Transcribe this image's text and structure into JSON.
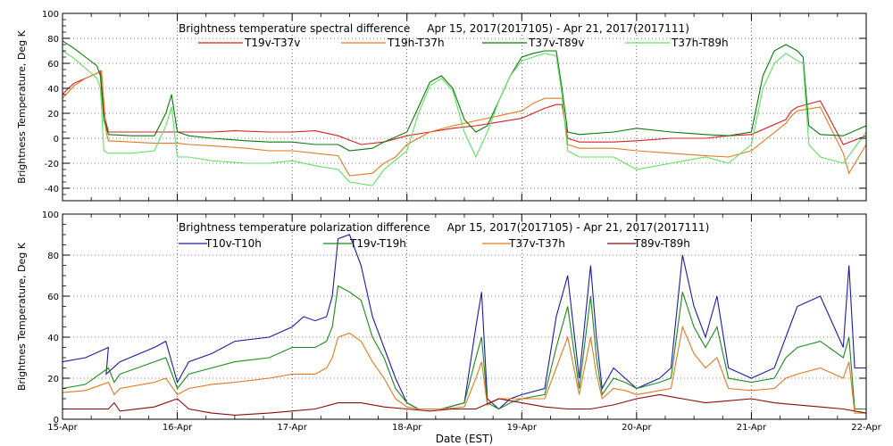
{
  "figure": {
    "xlabel": "Date (EST)",
    "x_ticks": [
      "15-Apr",
      "16-Apr",
      "17-Apr",
      "18-Apr",
      "19-Apr",
      "20-Apr",
      "21-Apr",
      "22-Apr"
    ]
  },
  "chart_data": [
    {
      "type": "line",
      "title": "Brightness temperature spectral difference     Apr 15, 2017(2017105) - Apr 21, 2017(2017111)",
      "ylabel": "Brightness Temperature, Deg K",
      "xlim": [
        0,
        7
      ],
      "ylim": [
        -50,
        100
      ],
      "y_ticks": [
        -40,
        -20,
        0,
        20,
        40,
        60,
        80,
        100
      ],
      "grid": true,
      "legend": "top",
      "series": [
        {
          "name": "T19v-T37v",
          "color": "#d42020",
          "x": [
            0,
            0.05,
            0.1,
            0.2,
            0.3,
            0.33,
            0.36,
            0.4,
            0.6,
            0.8,
            1.0,
            1.1,
            1.3,
            1.5,
            1.8,
            2.0,
            2.2,
            2.4,
            2.6,
            2.8,
            3.0,
            3.2,
            3.4,
            3.6,
            3.8,
            4.0,
            4.1,
            4.2,
            4.3,
            4.35,
            4.4,
            4.5,
            4.8,
            5.0,
            5.3,
            5.6,
            5.8,
            6.0,
            6.3,
            6.35,
            6.4,
            6.6,
            6.8,
            7.0
          ],
          "y": [
            35,
            40,
            44,
            48,
            52,
            54,
            20,
            5,
            5,
            5,
            5,
            5,
            5,
            6,
            5,
            5,
            6,
            2,
            -5,
            -3,
            2,
            5,
            8,
            10,
            13,
            16,
            20,
            24,
            27,
            27,
            0,
            -3,
            -3,
            -2,
            0,
            0,
            2,
            3,
            15,
            22,
            25,
            30,
            -5,
            2
          ]
        },
        {
          "name": "T19h-T37h",
          "color": "#e07a1f",
          "x": [
            0,
            0.1,
            0.2,
            0.3,
            0.34,
            0.38,
            0.4,
            0.6,
            0.8,
            1.0,
            1.1,
            1.3,
            1.6,
            1.8,
            2.0,
            2.2,
            2.4,
            2.5,
            2.7,
            2.8,
            2.9,
            3.0,
            3.2,
            3.4,
            3.6,
            3.8,
            4.0,
            4.1,
            4.2,
            4.35,
            4.4,
            4.5,
            4.8,
            5.0,
            5.3,
            5.6,
            5.8,
            6.0,
            6.3,
            6.35,
            6.4,
            6.6,
            6.8,
            6.85,
            7.0
          ],
          "y": [
            32,
            42,
            48,
            52,
            54,
            5,
            -2,
            -3,
            -4,
            -4,
            -5,
            -6,
            -8,
            -10,
            -10,
            -12,
            -14,
            -30,
            -28,
            -20,
            -15,
            -5,
            5,
            10,
            14,
            18,
            22,
            28,
            32,
            32,
            -5,
            -8,
            -8,
            -10,
            -12,
            -14,
            -15,
            -10,
            12,
            18,
            22,
            25,
            -12,
            -28,
            -5
          ]
        },
        {
          "name": "T37v-T89v",
          "color": "#0a7a0a",
          "x": [
            0,
            0.1,
            0.2,
            0.3,
            0.33,
            0.36,
            0.4,
            0.6,
            0.8,
            0.9,
            0.95,
            1.0,
            1.1,
            1.3,
            1.6,
            1.8,
            2.0,
            2.2,
            2.4,
            2.5,
            2.7,
            2.8,
            3.0,
            3.1,
            3.2,
            3.3,
            3.4,
            3.5,
            3.6,
            3.7,
            3.8,
            3.9,
            4.0,
            4.1,
            4.2,
            4.3,
            4.35,
            4.4,
            4.5,
            4.8,
            5.0,
            5.3,
            5.6,
            5.8,
            6.0,
            6.1,
            6.2,
            6.3,
            6.4,
            6.45,
            6.5,
            6.6,
            6.8,
            7.0
          ],
          "y": [
            78,
            72,
            65,
            58,
            50,
            15,
            3,
            2,
            2,
            20,
            35,
            5,
            2,
            0,
            -2,
            -3,
            -3,
            -5,
            -5,
            -10,
            -8,
            -3,
            5,
            25,
            45,
            50,
            40,
            15,
            5,
            10,
            30,
            50,
            65,
            68,
            70,
            70,
            40,
            5,
            3,
            5,
            8,
            5,
            3,
            2,
            5,
            50,
            70,
            75,
            70,
            65,
            10,
            3,
            2,
            10
          ]
        },
        {
          "name": "T37h-T89h",
          "color": "#62e062",
          "x": [
            0,
            0.1,
            0.2,
            0.3,
            0.33,
            0.36,
            0.4,
            0.6,
            0.8,
            0.9,
            0.95,
            1.0,
            1.1,
            1.3,
            1.6,
            1.8,
            2.0,
            2.2,
            2.4,
            2.5,
            2.7,
            2.8,
            3.0,
            3.1,
            3.2,
            3.3,
            3.4,
            3.5,
            3.6,
            3.7,
            3.8,
            3.9,
            4.0,
            4.1,
            4.2,
            4.3,
            4.35,
            4.4,
            4.5,
            4.8,
            5.0,
            5.3,
            5.6,
            5.8,
            6.0,
            6.1,
            6.2,
            6.3,
            6.4,
            6.45,
            6.5,
            6.6,
            6.8,
            7.0
          ],
          "y": [
            70,
            64,
            56,
            48,
            40,
            -10,
            -12,
            -12,
            -10,
            10,
            25,
            -15,
            -15,
            -18,
            -20,
            -20,
            -18,
            -22,
            -25,
            -35,
            -38,
            -25,
            -10,
            20,
            42,
            48,
            38,
            5,
            -15,
            5,
            30,
            50,
            62,
            65,
            68,
            66,
            35,
            -10,
            -15,
            -15,
            -25,
            -20,
            -15,
            -20,
            -5,
            40,
            60,
            68,
            62,
            60,
            -5,
            -15,
            -20,
            5
          ]
        }
      ]
    },
    {
      "type": "line",
      "title": "Brightness temperature polarization difference     Apr 15, 2017(2017105) - Apr 21, 2017(2017111)",
      "ylabel": "Brightnes Temperature, Deg K",
      "xlim": [
        0,
        7
      ],
      "ylim": [
        0,
        100
      ],
      "y_ticks": [
        0,
        20,
        40,
        60,
        80,
        100
      ],
      "grid": true,
      "legend": "top",
      "series": [
        {
          "name": "T10v-T10h",
          "color": "#1a1aa8",
          "x": [
            0,
            0.2,
            0.4,
            0.38,
            0.5,
            0.8,
            0.9,
            1.0,
            1.1,
            1.3,
            1.5,
            1.8,
            2.0,
            2.1,
            2.2,
            2.3,
            2.35,
            2.4,
            2.5,
            2.6,
            2.7,
            2.8,
            2.9,
            3.0,
            3.1,
            3.3,
            3.5,
            3.6,
            3.65,
            3.7,
            3.8,
            3.9,
            4.0,
            4.2,
            4.3,
            4.4,
            4.5,
            4.6,
            4.65,
            4.7,
            4.8,
            4.9,
            5.0,
            5.2,
            5.3,
            5.4,
            5.5,
            5.6,
            5.7,
            5.8,
            6.0,
            6.2,
            6.3,
            6.4,
            6.6,
            6.8,
            6.85,
            6.9,
            7.0
          ],
          "y": [
            28,
            30,
            35,
            22,
            28,
            35,
            38,
            18,
            28,
            32,
            38,
            40,
            45,
            50,
            48,
            50,
            60,
            88,
            90,
            75,
            50,
            35,
            20,
            8,
            5,
            5,
            8,
            45,
            62,
            10,
            5,
            10,
            12,
            15,
            50,
            70,
            20,
            75,
            40,
            15,
            25,
            20,
            15,
            20,
            25,
            80,
            55,
            40,
            60,
            25,
            20,
            25,
            40,
            55,
            60,
            35,
            75,
            25,
            25
          ]
        },
        {
          "name": "T19v-T19h",
          "color": "#1a8a1a",
          "x": [
            0,
            0.2,
            0.4,
            0.45,
            0.5,
            0.8,
            0.9,
            1.0,
            1.1,
            1.3,
            1.5,
            1.8,
            2.0,
            2.2,
            2.3,
            2.35,
            2.4,
            2.5,
            2.6,
            2.7,
            2.8,
            2.9,
            3.0,
            3.1,
            3.3,
            3.5,
            3.6,
            3.65,
            3.7,
            3.8,
            3.9,
            4.0,
            4.2,
            4.3,
            4.4,
            4.5,
            4.6,
            4.65,
            4.7,
            4.8,
            4.9,
            5.0,
            5.2,
            5.3,
            5.4,
            5.5,
            5.6,
            5.7,
            5.8,
            6.0,
            6.2,
            6.3,
            6.4,
            6.6,
            6.8,
            6.85,
            6.9,
            7.0
          ],
          "y": [
            15,
            17,
            25,
            18,
            22,
            28,
            30,
            15,
            22,
            25,
            28,
            30,
            35,
            35,
            38,
            45,
            65,
            62,
            58,
            40,
            30,
            15,
            8,
            5,
            5,
            8,
            30,
            40,
            8,
            5,
            8,
            10,
            12,
            35,
            55,
            15,
            60,
            30,
            12,
            20,
            18,
            15,
            18,
            20,
            62,
            45,
            35,
            45,
            20,
            18,
            20,
            30,
            35,
            38,
            30,
            40,
            5,
            5
          ]
        },
        {
          "name": "T37v-T37h",
          "color": "#e07a1f",
          "x": [
            0,
            0.2,
            0.4,
            0.45,
            0.5,
            0.8,
            0.9,
            1.0,
            1.1,
            1.3,
            1.5,
            1.8,
            2.0,
            2.2,
            2.3,
            2.35,
            2.4,
            2.5,
            2.6,
            2.7,
            2.8,
            2.9,
            3.0,
            3.1,
            3.3,
            3.5,
            3.6,
            3.65,
            3.7,
            3.8,
            3.9,
            4.0,
            4.2,
            4.3,
            4.4,
            4.5,
            4.6,
            4.65,
            4.7,
            4.8,
            4.9,
            5.0,
            5.2,
            5.3,
            5.4,
            5.5,
            5.6,
            5.7,
            5.8,
            6.0,
            6.2,
            6.3,
            6.4,
            6.6,
            6.8,
            6.85,
            6.9,
            7.0
          ],
          "y": [
            13,
            14,
            18,
            12,
            15,
            18,
            20,
            12,
            15,
            17,
            18,
            20,
            22,
            22,
            25,
            30,
            40,
            42,
            38,
            28,
            20,
            10,
            6,
            5,
            5,
            6,
            20,
            28,
            7,
            10,
            10,
            10,
            10,
            25,
            40,
            12,
            40,
            22,
            10,
            15,
            14,
            12,
            14,
            15,
            45,
            32,
            25,
            30,
            15,
            14,
            15,
            20,
            22,
            25,
            20,
            28,
            3,
            3
          ]
        },
        {
          "name": "T89v-T89h",
          "color": "#8b0a0a",
          "x": [
            0,
            0.2,
            0.4,
            0.45,
            0.5,
            0.8,
            1.0,
            1.1,
            1.3,
            1.5,
            1.8,
            2.0,
            2.2,
            2.4,
            2.6,
            2.8,
            3.0,
            3.2,
            3.4,
            3.6,
            3.8,
            4.0,
            4.2,
            4.4,
            4.6,
            4.8,
            5.0,
            5.2,
            5.4,
            5.6,
            5.8,
            6.0,
            6.2,
            6.4,
            6.6,
            6.8,
            7.0
          ],
          "y": [
            5,
            5,
            5,
            8,
            4,
            6,
            10,
            5,
            3,
            2,
            3,
            4,
            5,
            8,
            8,
            6,
            5,
            4,
            5,
            5,
            10,
            8,
            6,
            5,
            5,
            7,
            10,
            12,
            10,
            8,
            9,
            10,
            8,
            7,
            6,
            5,
            3
          ]
        }
      ]
    }
  ]
}
